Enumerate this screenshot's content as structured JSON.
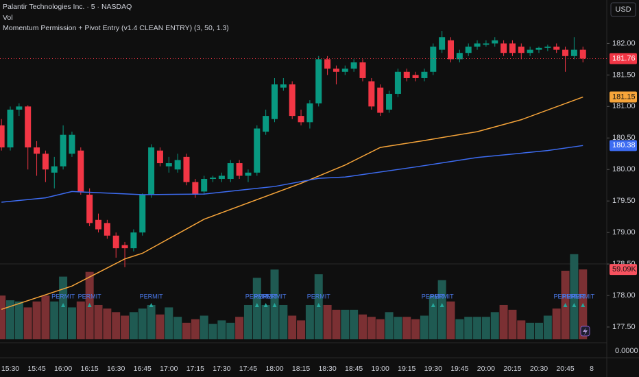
{
  "chart_data": {
    "type": "candlestick",
    "title": "Palantir Technologies Inc. · 5 · NASDAQ",
    "volume_title": "Vol",
    "indicator": "Momentum Permission + Pivot Entry (v1.4 CLEAN ENTRY) (3, 50, 1.3)",
    "currency": "USD",
    "categories": [
      null,
      "15:30",
      null,
      null,
      "15:45",
      null,
      null,
      "16:00",
      null,
      null,
      "16:15",
      null,
      null,
      "16:30",
      null,
      null,
      "16:45",
      null,
      null,
      "17:00",
      null,
      null,
      "17:15",
      null,
      null,
      "17:30",
      null,
      null,
      "17:45",
      null,
      null,
      "18:00",
      null,
      null,
      "18:15",
      null,
      null,
      "18:30",
      null,
      null,
      "18:45",
      null,
      null,
      "19:00",
      null,
      null,
      "19:15",
      null,
      null,
      "19:30",
      null,
      null,
      "19:45",
      null,
      null,
      "20:00",
      null,
      null,
      "20:15",
      null,
      null,
      "20:30",
      null,
      null,
      "20:45",
      null,
      null,
      "8"
    ],
    "open": [
      180.7,
      180.35,
      180.95,
      181.0,
      180.35,
      180.25,
      179.95,
      180.05,
      180.25,
      180.3,
      179.6,
      179.2,
      179.15,
      178.95,
      178.8,
      178.75,
      179.0,
      179.6,
      180.3,
      180.05,
      180.0,
      180.2,
      179.8,
      179.65,
      179.85,
      179.85,
      179.85,
      180.1,
      179.9,
      179.95,
      180.6,
      180.8,
      181.3,
      181.35,
      180.85,
      180.75,
      181.05,
      181.75,
      181.6,
      181.55,
      181.6,
      181.7,
      181.4,
      181.3,
      180.95,
      181.2,
      181.55,
      181.5,
      181.45,
      181.55,
      181.9,
      182.05,
      181.75,
      181.85,
      181.95,
      181.98,
      182.0,
      182.0,
      182.0,
      181.95,
      181.85,
      181.9,
      181.93,
      181.95,
      181.9,
      181.8,
      181.9,
      null
    ],
    "high": [
      180.8,
      181.0,
      181.05,
      181.02,
      180.45,
      180.3,
      180.2,
      180.7,
      180.6,
      180.35,
      179.7,
      179.3,
      179.2,
      179.0,
      178.85,
      179.05,
      179.62,
      180.4,
      180.35,
      180.2,
      180.25,
      180.25,
      179.85,
      179.9,
      179.9,
      179.95,
      180.15,
      180.15,
      180.0,
      180.7,
      180.95,
      181.45,
      181.45,
      181.4,
      180.95,
      181.1,
      181.8,
      181.8,
      181.65,
      181.65,
      181.75,
      181.75,
      181.45,
      181.35,
      181.25,
      181.6,
      181.6,
      181.55,
      181.6,
      182.0,
      182.2,
      182.1,
      181.9,
      182.0,
      182.05,
      182.05,
      182.1,
      182.05,
      182.05,
      182.0,
      181.95,
      181.95,
      181.98,
      182.0,
      181.95,
      182.1,
      181.95,
      null
    ],
    "low": [
      180.3,
      180.3,
      180.85,
      180.0,
      179.9,
      179.8,
      179.7,
      180.0,
      180.2,
      179.6,
      179.1,
      179.0,
      178.9,
      178.6,
      178.45,
      178.7,
      178.95,
      179.55,
      180.05,
      179.95,
      179.95,
      179.75,
      179.55,
      179.6,
      179.8,
      179.8,
      179.8,
      179.85,
      179.8,
      179.9,
      180.55,
      180.75,
      181.25,
      180.8,
      180.7,
      180.65,
      181.0,
      181.5,
      181.35,
      181.5,
      181.55,
      181.4,
      180.95,
      180.85,
      180.9,
      181.15,
      181.4,
      181.4,
      181.4,
      181.5,
      181.85,
      181.7,
      181.7,
      181.8,
      181.9,
      181.95,
      181.95,
      181.8,
      181.8,
      181.75,
      181.8,
      181.85,
      181.88,
      181.85,
      181.55,
      181.75,
      181.7,
      null
    ],
    "close": [
      180.35,
      180.95,
      181.0,
      180.35,
      180.25,
      180.0,
      180.05,
      180.55,
      180.55,
      179.65,
      179.15,
      179.05,
      178.95,
      178.75,
      178.75,
      179.0,
      179.6,
      180.35,
      180.1,
      180.1,
      180.15,
      179.8,
      179.6,
      179.85,
      179.87,
      179.9,
      180.1,
      179.9,
      179.95,
      180.65,
      180.85,
      181.35,
      181.35,
      180.85,
      180.75,
      181.05,
      181.75,
      181.6,
      181.55,
      181.6,
      181.7,
      181.45,
      181.0,
      180.9,
      181.2,
      181.55,
      181.45,
      181.45,
      181.55,
      181.95,
      182.1,
      181.75,
      181.85,
      181.95,
      182.0,
      182.0,
      182.05,
      181.85,
      181.85,
      181.85,
      181.9,
      181.93,
      181.95,
      181.9,
      181.8,
      181.9,
      181.76,
      null
    ],
    "volume": [
      37000,
      33000,
      32000,
      27000,
      32000,
      37000,
      32000,
      53000,
      27000,
      32000,
      57000,
      29000,
      26000,
      23000,
      20000,
      23000,
      26000,
      29000,
      21000,
      27000,
      19000,
      14000,
      17000,
      20000,
      13000,
      16000,
      14000,
      19000,
      29000,
      52000,
      29000,
      59000,
      29000,
      20000,
      16000,
      29000,
      55000,
      29000,
      25000,
      25000,
      25000,
      21000,
      19000,
      17000,
      23000,
      19000,
      19000,
      17000,
      20000,
      37000,
      50000,
      32000,
      17000,
      19000,
      19000,
      19000,
      23000,
      29000,
      25000,
      16000,
      14000,
      14000,
      20000,
      26000,
      58000,
      72000,
      59090,
      null
    ],
    "volume_value_labels": [
      null,
      null,
      null,
      null,
      null,
      null,
      null,
      null,
      null,
      null,
      null,
      null,
      null,
      null,
      null,
      null,
      null,
      null,
      null,
      null,
      null,
      null,
      null,
      null,
      null,
      null,
      null,
      null,
      null,
      null,
      null,
      null,
      null,
      null,
      null,
      null,
      null,
      null,
      null,
      null,
      null,
      null,
      null,
      null,
      null,
      null,
      null,
      null,
      null,
      null,
      null,
      null,
      null,
      null,
      null,
      null,
      null,
      null,
      null,
      null,
      null,
      null,
      null,
      null,
      null,
      null,
      "59.09K",
      null
    ],
    "volume_ylim": [
      0,
      80000
    ],
    "up_color": "#089981",
    "down_color": "#f23645",
    "volume_up_color": "#1f5a52",
    "volume_down_color": "#7b3033",
    "ma": [
      {
        "color": "#f7a53a",
        "x": [
          0,
          8,
          14,
          16,
          23,
          34,
          39,
          43,
          48,
          54,
          59,
          66
        ],
        "values": [
          177.78,
          178.15,
          178.58,
          178.67,
          179.21,
          179.78,
          180.07,
          180.35,
          180.46,
          180.6,
          180.79,
          181.15
        ]
      },
      {
        "color": "#3d6cf2",
        "x": [
          0,
          5,
          8,
          16,
          23,
          31,
          36,
          39,
          47,
          54,
          62,
          66
        ],
        "values": [
          179.48,
          179.55,
          179.65,
          179.6,
          179.61,
          179.73,
          179.86,
          179.88,
          180.04,
          180.19,
          180.3,
          180.38
        ]
      }
    ],
    "annotations": [
      {
        "text": "PERMIT",
        "index": 7
      },
      {
        "text": "PERMIT",
        "index": 10
      },
      {
        "text": "PERMIT",
        "index": 17
      },
      {
        "text": "PERMIT",
        "index": 29
      },
      {
        "text": "PERMIT",
        "index": 30
      },
      {
        "text": "PERMIT",
        "index": 31
      },
      {
        "text": "PERMIT",
        "index": 36
      },
      {
        "text": "PERMIT",
        "index": 49
      },
      {
        "text": "PERMIT",
        "index": 50
      },
      {
        "text": "PERMIT",
        "index": 64
      },
      {
        "text": "PERMIT",
        "index": 65
      },
      {
        "text": "PERMIT",
        "index": 66
      }
    ],
    "ylim": [
      177.25,
      182.69
    ],
    "yticks": [
      {
        "value": 182.0,
        "label": "182.00"
      },
      {
        "value": 181.5,
        "label": "181.50"
      },
      {
        "value": 181.0,
        "label": "181.00"
      },
      {
        "value": 180.5,
        "label": "180.50"
      },
      {
        "value": 180.0,
        "label": "180.00"
      },
      {
        "value": 179.5,
        "label": "179.50"
      },
      {
        "value": 179.0,
        "label": "179.00"
      },
      {
        "value": 178.5,
        "label": "178.50"
      },
      {
        "value": 178.0,
        "label": "178.00"
      },
      {
        "value": 177.5,
        "label": "177.50"
      }
    ],
    "indicator_ticks": [
      {
        "value": 0,
        "label": "0.0000"
      }
    ],
    "grid": false
  }
}
